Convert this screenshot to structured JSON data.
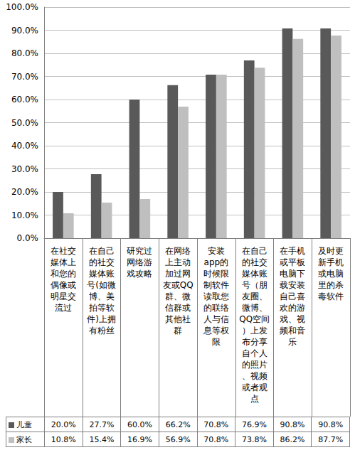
{
  "chart_data": {
    "type": "bar",
    "categories": [
      "在社交媒体上和您的偶像或明星交流过",
      "在自己的社交媒体账号(如微博、美拍等软件)上拥有粉丝",
      "研究过网络游戏攻略",
      "在网络上主动加过网友或QQ群、微信群或其他社群",
      "安装app的时候限制软件读取您的联络人与信息等权限",
      "在自己的社交媒体账号（朋友圈、微博、QQ空间）上发布分享自个人的照片、视频或者观点",
      "在手机或平板电脑下载安装自己喜欢的游戏、视频和音乐",
      "及时更新手机或电脑里的杀毒软件"
    ],
    "series": [
      {
        "name": "儿童",
        "color": "#595959",
        "values": [
          20.0,
          27.7,
          60.0,
          66.2,
          70.8,
          76.9,
          90.8,
          90.8
        ],
        "value_labels": [
          "20.0%",
          "27.7%",
          "60.0%",
          "66.2%",
          "70.8%",
          "76.9%",
          "90.8%",
          "90.8%"
        ]
      },
      {
        "name": "家长",
        "color": "#bfbfbf",
        "values": [
          10.8,
          15.4,
          16.9,
          56.9,
          70.8,
          73.8,
          86.2,
          87.7
        ],
        "value_labels": [
          "10.8%",
          "15.4%",
          "16.9%",
          "56.9%",
          "70.8%",
          "73.8%",
          "86.2%",
          "87.7%"
        ]
      }
    ],
    "ylim": [
      0,
      100
    ],
    "yticks": [
      {
        "value": 0,
        "label": "0.0%"
      },
      {
        "value": 10,
        "label": "10.0%"
      },
      {
        "value": 20,
        "label": "20.0%"
      },
      {
        "value": 30,
        "label": "30.0%"
      },
      {
        "value": 40,
        "label": "40.0%"
      },
      {
        "value": 50,
        "label": "50.0%"
      },
      {
        "value": 60,
        "label": "60.0%"
      },
      {
        "value": 70,
        "label": "70.0%"
      },
      {
        "value": 80,
        "label": "80.0%"
      },
      {
        "value": 90,
        "label": "90.0%"
      },
      {
        "value": 100,
        "label": "100.0%"
      }
    ],
    "grid": true
  }
}
